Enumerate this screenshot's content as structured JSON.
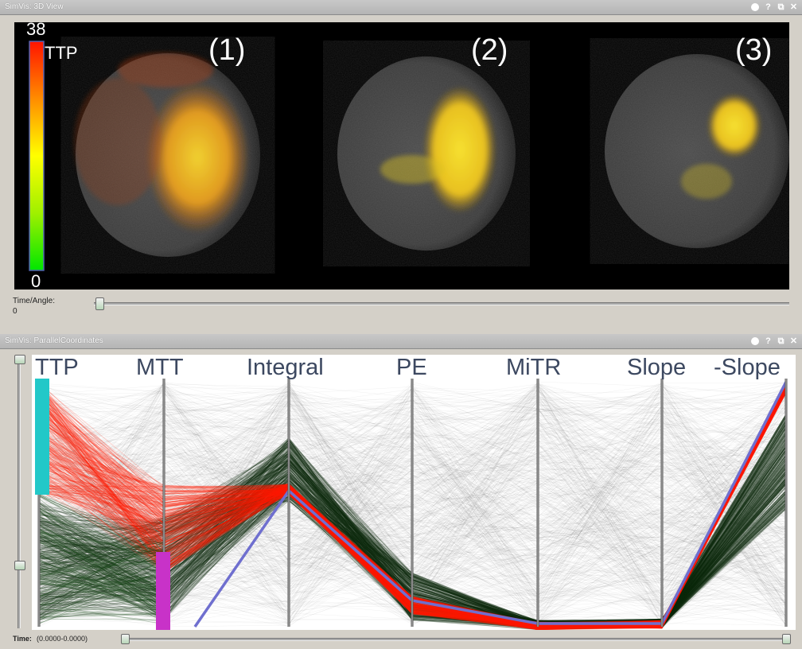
{
  "top_panel": {
    "title": "SimVis: 3D View",
    "colorbar": {
      "max": "38",
      "min": "0",
      "label": "TTP"
    },
    "view_labels": [
      "(1)",
      "(2)",
      "(3)"
    ],
    "slider_label": "Time/Angle:",
    "slider_value": "0",
    "slider_position": 0
  },
  "bottom_panel": {
    "title": "SimVis: ParallelCoordinates",
    "axes": [
      "TTP",
      "MTT",
      "Integral",
      "PE",
      "MiTR",
      "Slope",
      "-Slope"
    ],
    "time_label": "Time:",
    "time_value": "(0.0000-0.0000)"
  },
  "window_controls": {
    "help": "?",
    "restore": "⧉",
    "close": "✕"
  },
  "colors": {
    "highlight_red": "#ff1a00",
    "dark_green": "#0b2a0b",
    "selection_line": "#6f6fcf",
    "ttp_brush": "#22c8c8",
    "mtt_brush": "#c832c8"
  }
}
